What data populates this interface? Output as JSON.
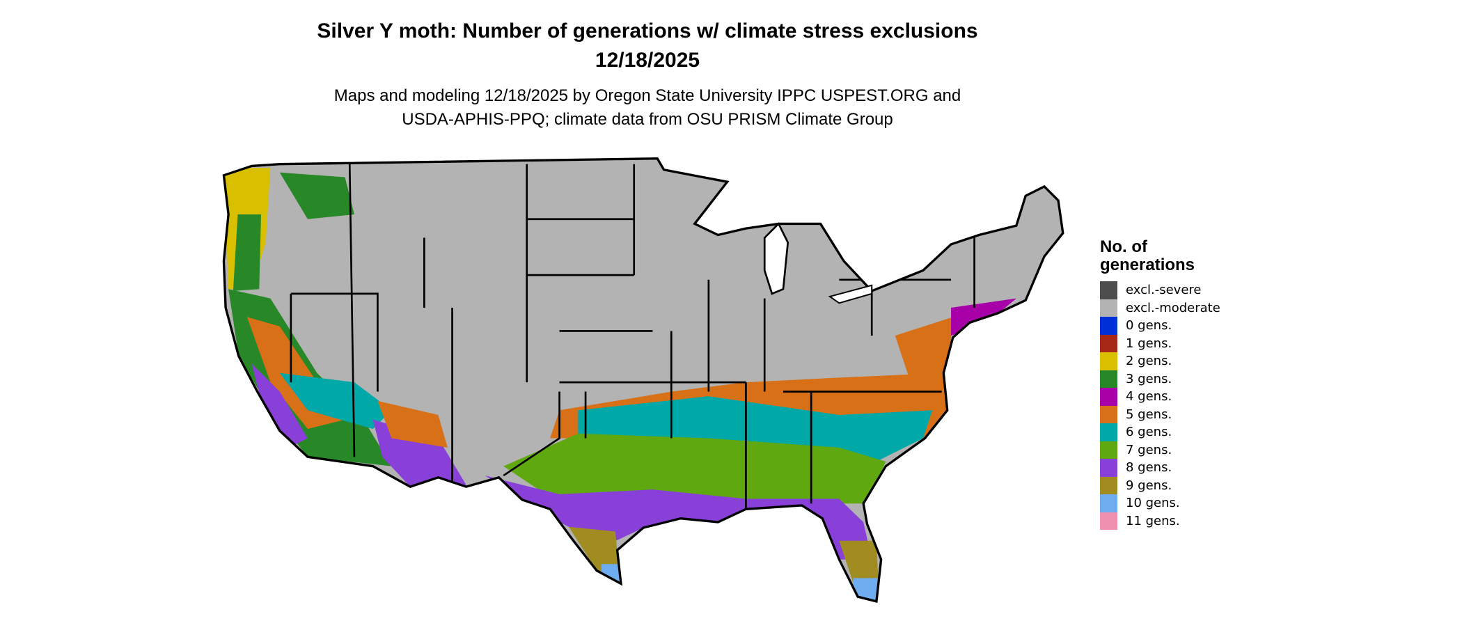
{
  "title": {
    "line1": "Silver Y moth: Number of generations w/ climate stress exclusions",
    "line2": "12/18/2025"
  },
  "subtitle": {
    "line1": "Maps and modeling 12/18/2025 by Oregon State University IPPC USPEST.ORG and",
    "line2": "USDA-APHIS-PPQ; climate data from OSU PRISM Climate Group"
  },
  "legend": {
    "title_line1": "No. of",
    "title_line2": "generations",
    "items": [
      {
        "label": "excl.-severe",
        "color": "#4d4d4d"
      },
      {
        "label": "excl.-moderate",
        "color": "#b3b3b3"
      },
      {
        "label": "0 gens.",
        "color": "#0030d8"
      },
      {
        "label": "1 gens.",
        "color": "#a82818"
      },
      {
        "label": "2 gens.",
        "color": "#d8c000"
      },
      {
        "label": "3 gens.",
        "color": "#288828"
      },
      {
        "label": "4 gens.",
        "color": "#a800a8"
      },
      {
        "label": "5 gens.",
        "color": "#d87018"
      },
      {
        "label": "6 gens.",
        "color": "#00a8a8"
      },
      {
        "label": "7 gens.",
        "color": "#60a810"
      },
      {
        "label": "8 gens.",
        "color": "#8840d8"
      },
      {
        "label": "9 gens.",
        "color": "#a08c20"
      },
      {
        "label": "10 gens.",
        "color": "#70acf0"
      },
      {
        "label": "11 gens.",
        "color": "#f090b0"
      }
    ]
  }
}
